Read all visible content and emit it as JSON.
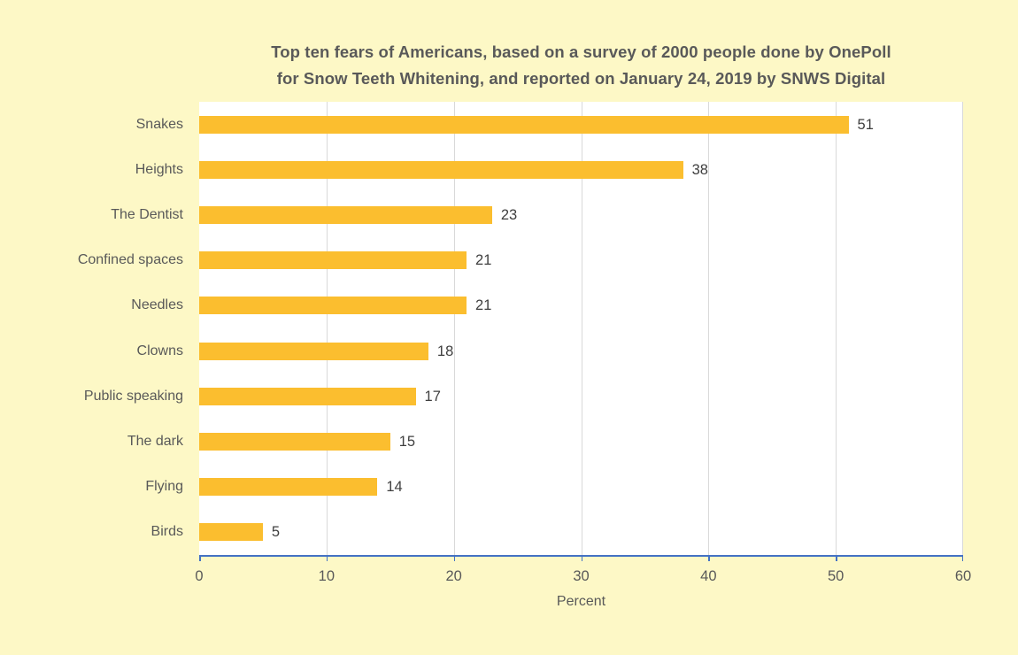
{
  "chart_data": {
    "type": "bar",
    "orientation": "horizontal",
    "title": "Top ten fears of Americans, based on a survey of 2000 people done by OnePoll for Snow Teeth Whitening, and reported on January 24, 2019 by SNWS Digital",
    "title_line1": "Top ten fears of Americans, based on a survey of 2000 people done by OnePoll",
    "title_line2": "for Snow Teeth Whitening, and reported on January 24, 2019 by SNWS Digital",
    "categories": [
      "Snakes",
      "Heights",
      "The Dentist",
      "Confined spaces",
      "Needles",
      "Clowns",
      "Public speaking",
      "The dark",
      "Flying",
      "Birds"
    ],
    "values": [
      51,
      38,
      23,
      21,
      21,
      18,
      17,
      15,
      14,
      5
    ],
    "data_labels_shown": true,
    "xlabel": "Percent",
    "ylabel": "",
    "xlim": [
      0,
      60
    ],
    "xticks": [
      0,
      10,
      20,
      30,
      40,
      50,
      60
    ],
    "grid": true,
    "legend": "none",
    "colors": {
      "page_background": "#FDF8C6",
      "plot_background": "#FFFFFF",
      "bar": "#FBBE2F",
      "title_text": "#595959",
      "category_text": "#595959",
      "value_text": "#3F3F3F",
      "tick_text": "#595959",
      "axis_line": "#4472C4",
      "gridline": "#D9D9D9"
    }
  }
}
